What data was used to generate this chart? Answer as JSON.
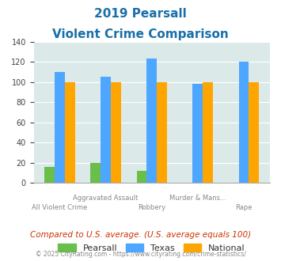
{
  "title_line1": "2019 Pearsall",
  "title_line2": "Violent Crime Comparison",
  "categories": [
    "All Violent Crime",
    "Aggravated Assault",
    "Robbery",
    "Murder & Mans...",
    "Rape"
  ],
  "series": {
    "Pearsall": [
      16,
      20,
      12,
      0,
      0
    ],
    "Texas": [
      110,
      105,
      123,
      98,
      120
    ],
    "National": [
      100,
      100,
      100,
      100,
      100
    ]
  },
  "colors": {
    "Pearsall": "#6abf4b",
    "Texas": "#4da6ff",
    "National": "#ffa500"
  },
  "ylim": [
    0,
    140
  ],
  "yticks": [
    0,
    20,
    40,
    60,
    80,
    100,
    120,
    140
  ],
  "bg_color": "#dce9e9",
  "title_color": "#1a6fa8",
  "note_text": "Compared to U.S. average. (U.S. average equals 100)",
  "note_color": "#cc3300",
  "footer_text": "© 2025 CityRating.com - https://www.cityrating.com/crime-statistics/",
  "footer_color": "#888888",
  "xlabel_color": "#888888"
}
